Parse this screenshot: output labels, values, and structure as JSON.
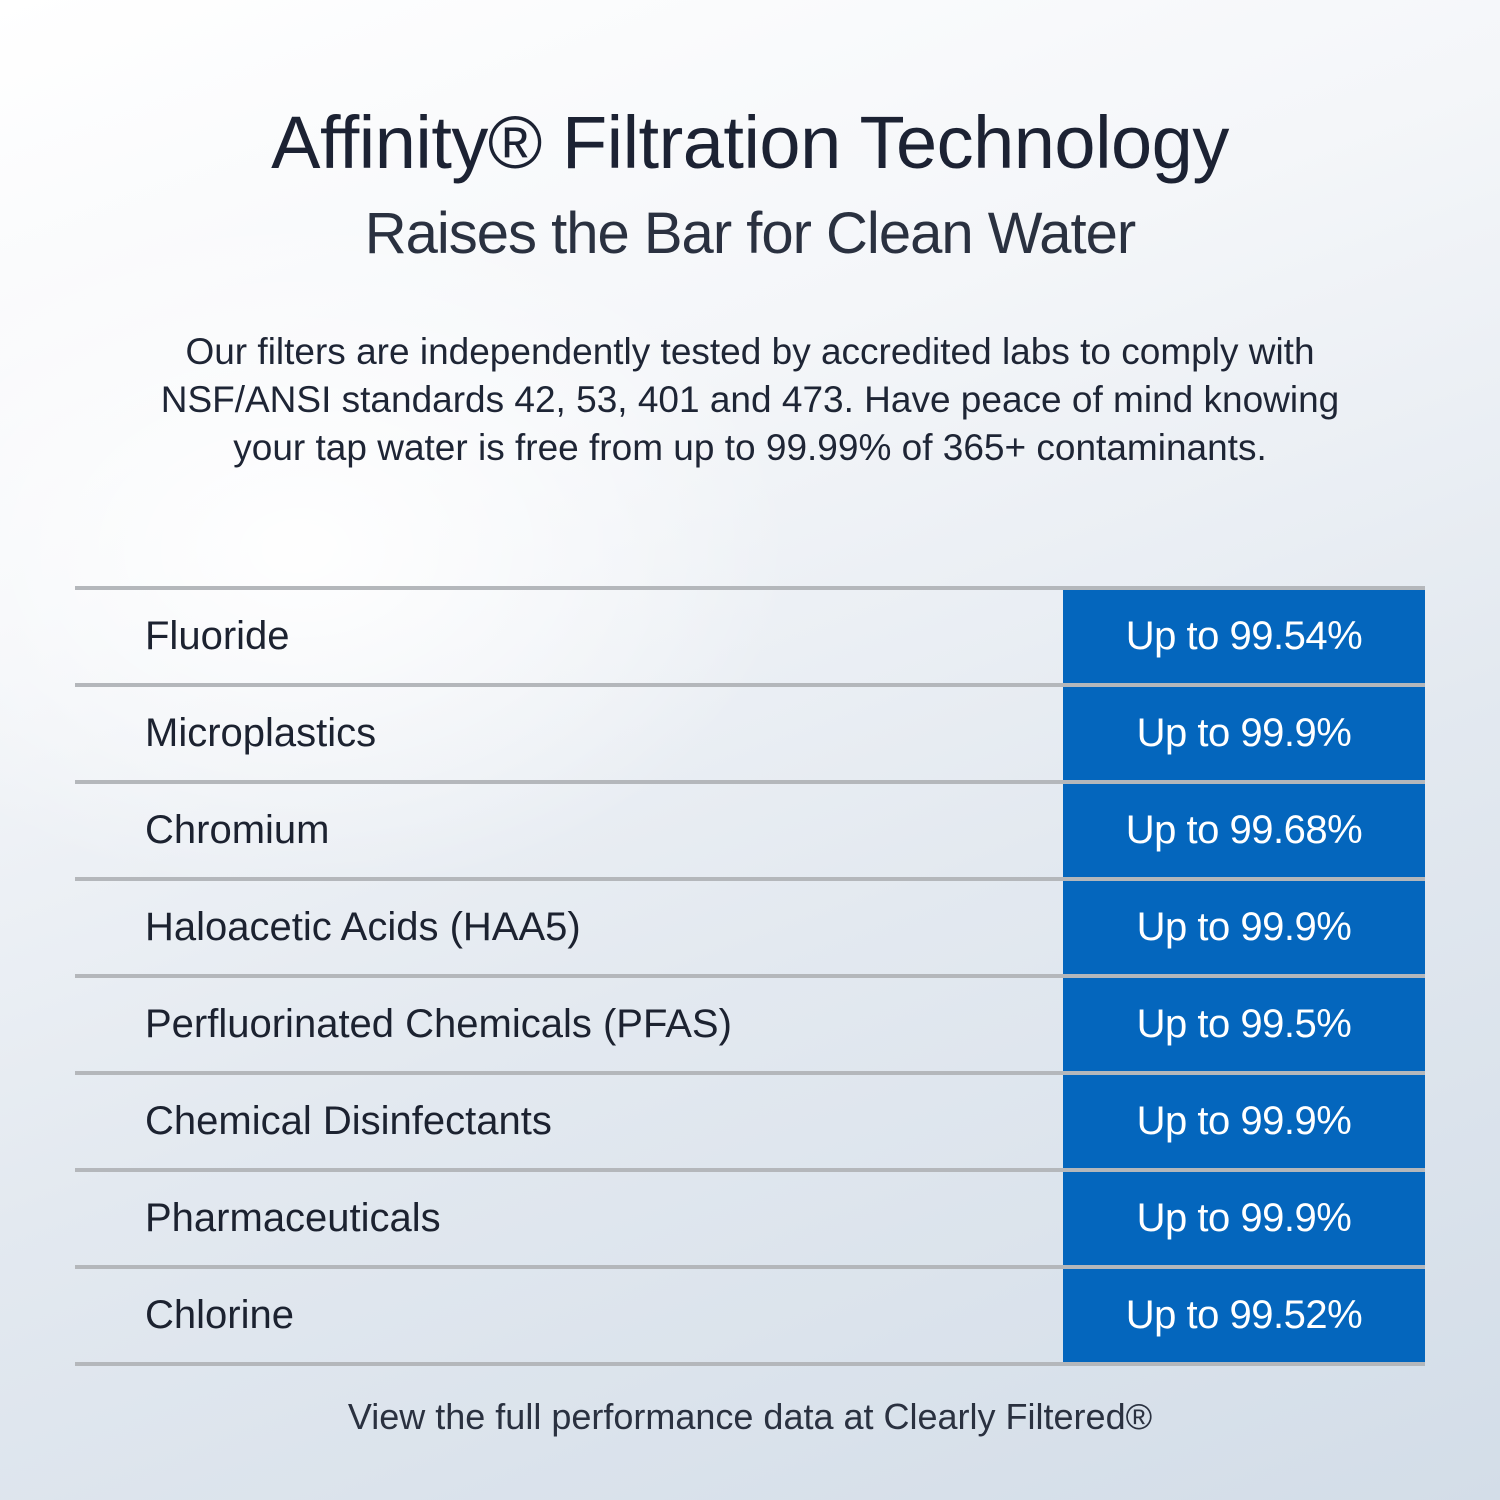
{
  "header": {
    "title": "Affinity® Filtration Technology",
    "subtitle": "Raises the Bar for Clean Water"
  },
  "intro": "Our filters are independently tested by accredited labs to comply with NSF/ANSI standards 42, 53, 401 and 473. Have peace of mind knowing your tap water is free from up to 99.99% of 365+ contaminants.",
  "colors": {
    "accent_blue": "#0466bd",
    "divider": "#b4b7bb",
    "text": "#1e2535"
  },
  "table": {
    "rows": [
      {
        "contaminant": "Fluoride",
        "reduction": "Up to 99.54%"
      },
      {
        "contaminant": "Microplastics",
        "reduction": "Up to 99.9%"
      },
      {
        "contaminant": "Chromium",
        "reduction": "Up to 99.68%"
      },
      {
        "contaminant": "Haloacetic Acids (HAA5)",
        "reduction": "Up to 99.9%"
      },
      {
        "contaminant": "Perfluorinated Chemicals (PFAS)",
        "reduction": "Up to 99.5%"
      },
      {
        "contaminant": "Chemical Disinfectants",
        "reduction": "Up to 99.9%"
      },
      {
        "contaminant": "Pharmaceuticals",
        "reduction": "Up to 99.9%"
      },
      {
        "contaminant": "Chlorine",
        "reduction": "Up to 99.52%"
      }
    ]
  },
  "footer": "View the full performance data at Clearly Filtered®"
}
